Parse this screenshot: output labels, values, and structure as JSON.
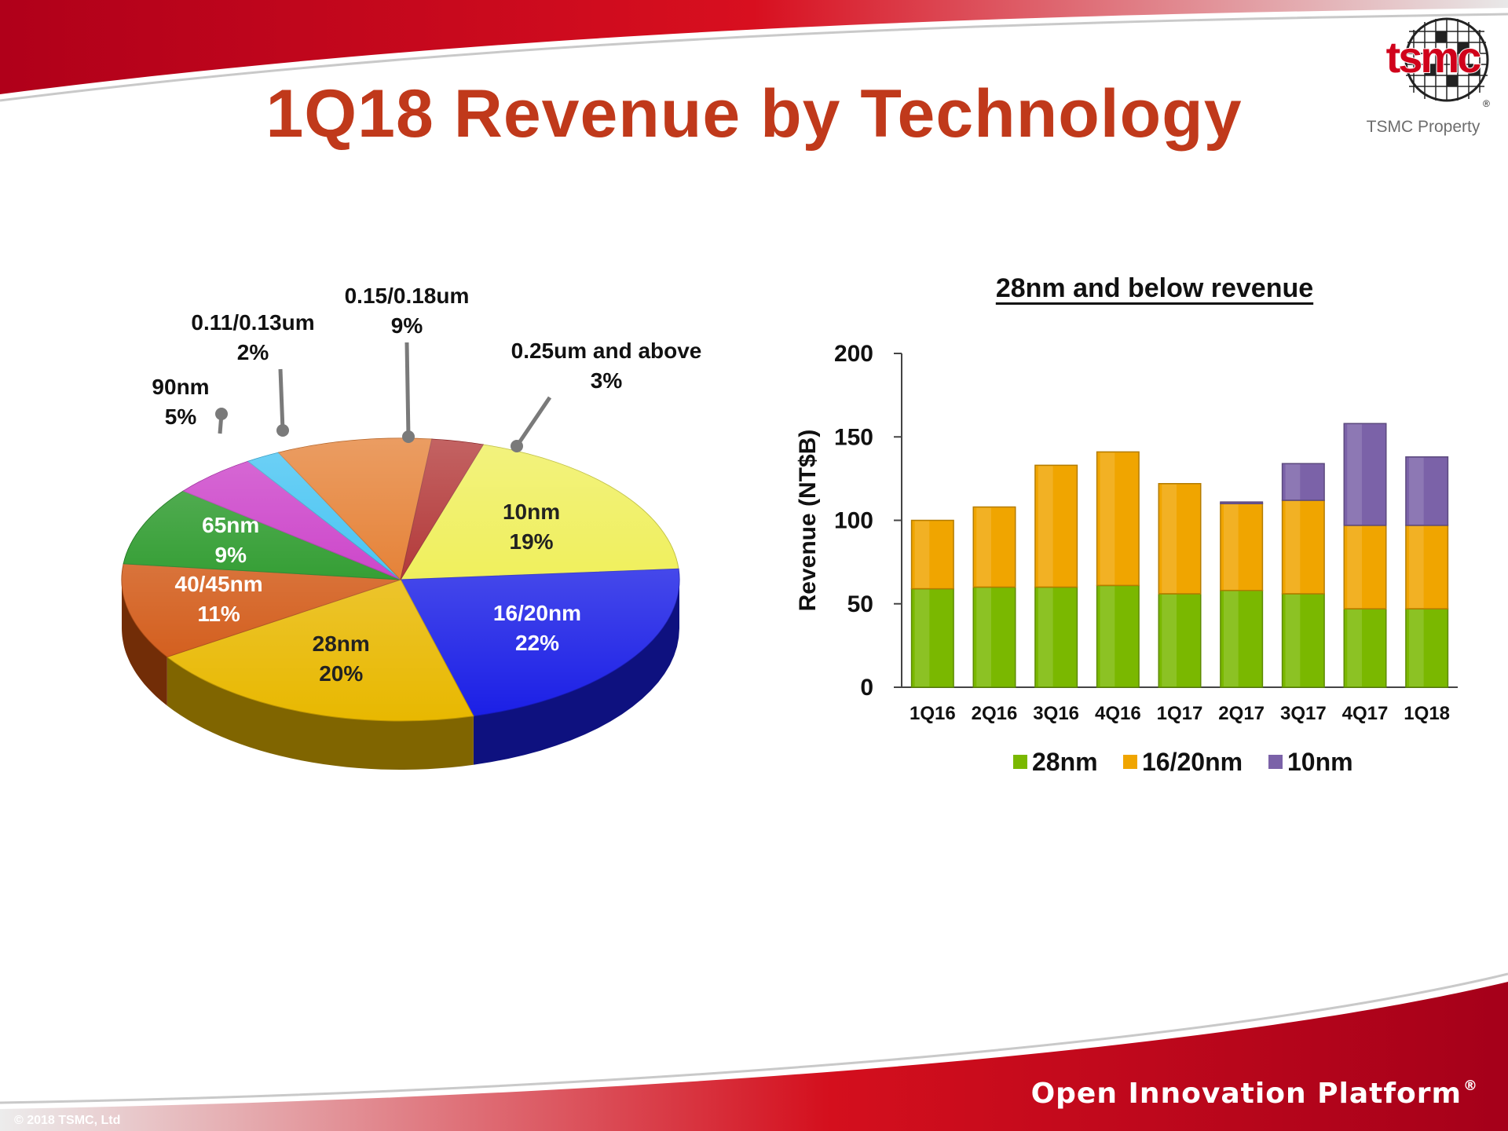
{
  "slide": {
    "title": "1Q18 Revenue by Technology",
    "brand": "tsmc",
    "property_note": "TSMC Property",
    "footer_brand": "Open Innovation Platform",
    "footer_mark": "®",
    "copyright": "© 2018 TSMC, Ltd"
  },
  "colors": {
    "title": "#c0391b",
    "brand_red": "#d0021b",
    "s28": "#7ab800",
    "s1620": "#f0a500",
    "s10": "#7b62a8"
  },
  "chart_data": [
    {
      "type": "pie",
      "title": "",
      "slices": [
        {
          "label": "10nm",
          "value": 19,
          "display": "19%",
          "color": "#ecec3a"
        },
        {
          "label": "16/20nm",
          "value": 22,
          "display": "22%",
          "color": "#1a1ee6"
        },
        {
          "label": "28nm",
          "value": 20,
          "display": "20%",
          "color": "#e8b800"
        },
        {
          "label": "40/45nm",
          "value": 11,
          "display": "11%",
          "color": "#d0520c"
        },
        {
          "label": "65nm",
          "value": 9,
          "display": "9%",
          "color": "#0a8a0a"
        },
        {
          "label": "90nm",
          "value": 5,
          "display": "5%",
          "color": "#c21fbf"
        },
        {
          "label": "0.11/0.13um",
          "value": 2,
          "display": "2%",
          "color": "#22b8f0"
        },
        {
          "label": "0.15/0.18um",
          "value": 9,
          "display": "9%",
          "color": "#e0680e"
        },
        {
          "label": "0.25um and above",
          "value": 3,
          "display": "3%",
          "color": "#a30f0f"
        }
      ]
    },
    {
      "type": "bar",
      "stacked": true,
      "title": "28nm and below revenue",
      "xlabel": "",
      "ylabel": "Revenue (NT$B)",
      "ylim": [
        0,
        200
      ],
      "yticks": [
        0,
        50,
        100,
        150,
        200
      ],
      "categories": [
        "1Q16",
        "2Q16",
        "3Q16",
        "4Q16",
        "1Q17",
        "2Q17",
        "3Q17",
        "4Q17",
        "1Q18"
      ],
      "series": [
        {
          "name": "28nm",
          "color": "#7ab800",
          "values": [
            59,
            60,
            60,
            61,
            56,
            58,
            56,
            47,
            47
          ]
        },
        {
          "name": "16/20nm",
          "color": "#f0a500",
          "values": [
            41,
            48,
            73,
            80,
            66,
            52,
            56,
            50,
            50
          ]
        },
        {
          "name": "10nm",
          "color": "#7b62a8",
          "values": [
            0,
            0,
            0,
            0,
            0,
            1,
            22,
            61,
            41
          ]
        }
      ],
      "legend": "bottom"
    }
  ]
}
